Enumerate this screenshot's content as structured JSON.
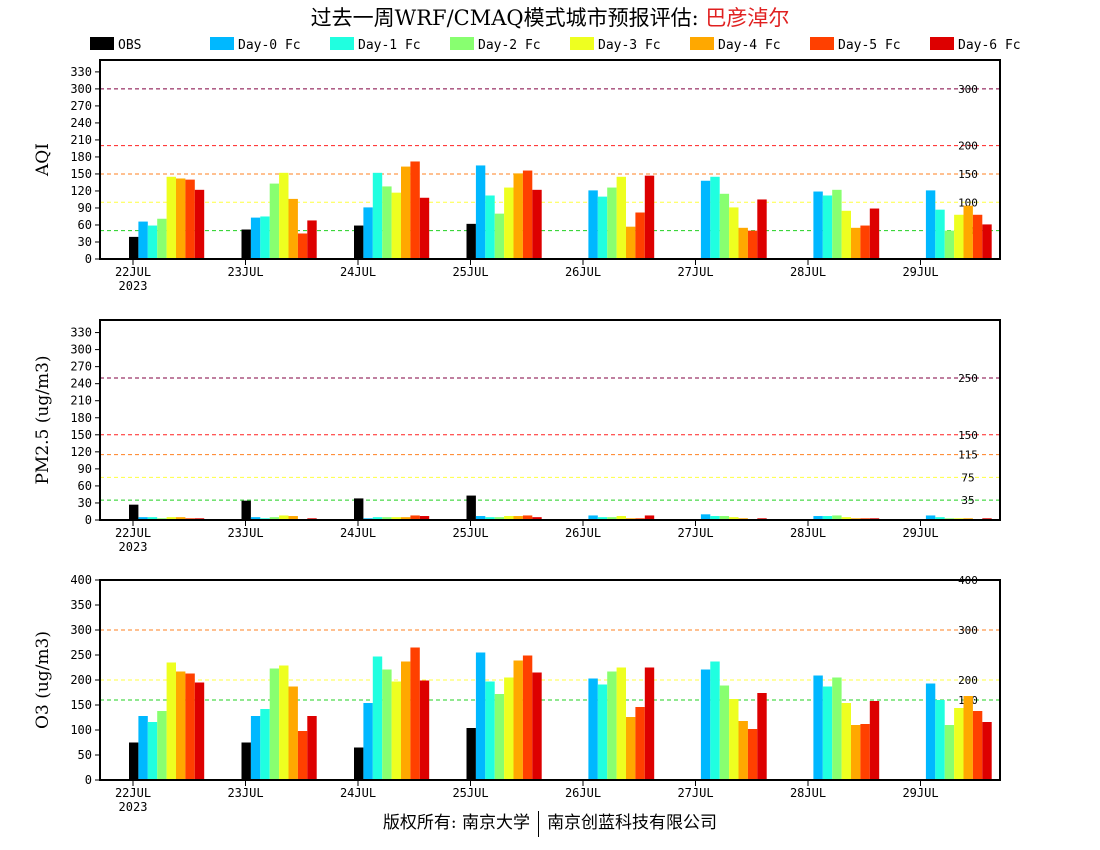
{
  "title": {
    "main": "过去一周WRF/CMAQ模式城市预报评估: ",
    "city": "巴彦淖尔"
  },
  "footer": {
    "left": "版权所有: 南京大学",
    "right": "南京创蓝科技有限公司"
  },
  "chart_data": [
    {
      "type": "bar",
      "ylabel": "AQI",
      "ylim": [
        0,
        350
      ],
      "yticks": [
        0,
        30,
        60,
        90,
        120,
        150,
        180,
        210,
        240,
        270,
        300,
        330
      ],
      "categories": [
        "22JUL",
        "23JUL",
        "24JUL",
        "25JUL",
        "26JUL",
        "27JUL",
        "28JUL",
        "29JUL"
      ],
      "year_label": "2023",
      "ref_lines": [
        {
          "value": 300,
          "label": "300",
          "color": "#800040"
        },
        {
          "value": 200,
          "label": "200",
          "color": "#ff2020"
        },
        {
          "value": 150,
          "label": "150",
          "color": "#ff8020"
        },
        {
          "value": 100,
          "label": "100",
          "color": "#ffff40"
        },
        {
          "value": 50,
          "label": "50",
          "color": "#20d020"
        }
      ],
      "series": [
        {
          "name": "OBS",
          "color": "#000000",
          "values": [
            39,
            52,
            59,
            62,
            null,
            null,
            null,
            null
          ]
        },
        {
          "name": "Day-0 Fc",
          "color": "#00b8ff",
          "values": [
            66,
            73,
            91,
            165,
            121,
            138,
            119,
            121
          ]
        },
        {
          "name": "Day-1 Fc",
          "color": "#20ffe0",
          "values": [
            59,
            75,
            152,
            112,
            110,
            145,
            112,
            87
          ]
        },
        {
          "name": "Day-2 Fc",
          "color": "#88ff70",
          "values": [
            71,
            133,
            128,
            80,
            126,
            115,
            122,
            50
          ]
        },
        {
          "name": "Day-3 Fc",
          "color": "#eeff20",
          "values": [
            145,
            152,
            117,
            126,
            145,
            91,
            85,
            78
          ]
        },
        {
          "name": "Day-4 Fc",
          "color": "#ffa800",
          "values": [
            142,
            106,
            163,
            151,
            57,
            55,
            55,
            94
          ]
        },
        {
          "name": "Day-5 Fc",
          "color": "#ff4000",
          "values": [
            140,
            45,
            172,
            156,
            82,
            50,
            59,
            78
          ]
        },
        {
          "name": "Day-6 Fc",
          "color": "#dd0000",
          "values": [
            122,
            68,
            108,
            122,
            147,
            105,
            89,
            61
          ]
        }
      ]
    },
    {
      "type": "bar",
      "ylabel": "PM2.5 (ug/m3)",
      "ylim": [
        0,
        350
      ],
      "yticks": [
        0,
        30,
        60,
        90,
        120,
        150,
        180,
        210,
        240,
        270,
        300,
        330
      ],
      "categories": [
        "22JUL",
        "23JUL",
        "24JUL",
        "25JUL",
        "26JUL",
        "27JUL",
        "28JUL",
        "29JUL"
      ],
      "year_label": "2023",
      "ref_lines": [
        {
          "value": 250,
          "label": "250",
          "color": "#800040"
        },
        {
          "value": 150,
          "label": "150",
          "color": "#ff2020"
        },
        {
          "value": 115,
          "label": "115",
          "color": "#ff8020"
        },
        {
          "value": 75,
          "label": "75",
          "color": "#ffff40"
        },
        {
          "value": 35,
          "label": "35",
          "color": "#20d020"
        }
      ],
      "series": [
        {
          "name": "OBS",
          "color": "#000000",
          "values": [
            27,
            34,
            38,
            43,
            null,
            null,
            null,
            null
          ]
        },
        {
          "name": "Day-0 Fc",
          "color": "#00b8ff",
          "values": [
            5,
            5,
            3,
            7,
            8,
            10,
            7,
            8
          ]
        },
        {
          "name": "Day-1 Fc",
          "color": "#20ffe0",
          "values": [
            5,
            3,
            5,
            5,
            5,
            7,
            7,
            5
          ]
        },
        {
          "name": "Day-2 Fc",
          "color": "#88ff70",
          "values": [
            3,
            5,
            5,
            5,
            5,
            7,
            8,
            3
          ]
        },
        {
          "name": "Day-3 Fc",
          "color": "#eeff20",
          "values": [
            5,
            8,
            5,
            7,
            7,
            5,
            5,
            3
          ]
        },
        {
          "name": "Day-4 Fc",
          "color": "#ffa800",
          "values": [
            5,
            7,
            5,
            7,
            3,
            3,
            3,
            3
          ]
        },
        {
          "name": "Day-5 Fc",
          "color": "#ff4000",
          "values": [
            3,
            0,
            8,
            8,
            3,
            0,
            3,
            0
          ]
        },
        {
          "name": "Day-6 Fc",
          "color": "#dd0000",
          "values": [
            3,
            3,
            7,
            5,
            8,
            3,
            3,
            3
          ]
        }
      ]
    },
    {
      "type": "bar",
      "ylabel": "O3 (ug/m3)",
      "ylim": [
        0,
        400
      ],
      "yticks": [
        0,
        50,
        100,
        150,
        200,
        250,
        300,
        350,
        400
      ],
      "categories": [
        "22JUL",
        "23JUL",
        "24JUL",
        "25JUL",
        "26JUL",
        "27JUL",
        "28JUL",
        "29JUL"
      ],
      "year_label": "2023",
      "ref_lines": [
        {
          "value": 400,
          "label": "400",
          "color": "#ff2020"
        },
        {
          "value": 300,
          "label": "300",
          "color": "#ff8020"
        },
        {
          "value": 200,
          "label": "200",
          "color": "#ffff40"
        },
        {
          "value": 160,
          "label": "160",
          "color": "#20d020"
        }
      ],
      "series": [
        {
          "name": "OBS",
          "color": "#000000",
          "values": [
            75,
            75,
            65,
            104,
            null,
            null,
            null,
            null
          ]
        },
        {
          "name": "Day-0 Fc",
          "color": "#00b8ff",
          "values": [
            128,
            128,
            154,
            255,
            203,
            221,
            209,
            193
          ]
        },
        {
          "name": "Day-1 Fc",
          "color": "#20ffe0",
          "values": [
            116,
            142,
            247,
            197,
            191,
            237,
            187,
            160
          ]
        },
        {
          "name": "Day-2 Fc",
          "color": "#88ff70",
          "values": [
            138,
            223,
            221,
            172,
            217,
            189,
            205,
            110
          ]
        },
        {
          "name": "Day-3 Fc",
          "color": "#eeff20",
          "values": [
            235,
            229,
            197,
            205,
            225,
            162,
            154,
            144
          ]
        },
        {
          "name": "Day-4 Fc",
          "color": "#ffa800",
          "values": [
            217,
            187,
            237,
            239,
            126,
            118,
            110,
            168
          ]
        },
        {
          "name": "Day-5 Fc",
          "color": "#ff4000",
          "values": [
            213,
            98,
            265,
            249,
            146,
            102,
            112,
            138
          ]
        },
        {
          "name": "Day-6 Fc",
          "color": "#dd0000",
          "values": [
            195,
            128,
            199,
            215,
            225,
            174,
            158,
            116
          ]
        }
      ]
    }
  ]
}
